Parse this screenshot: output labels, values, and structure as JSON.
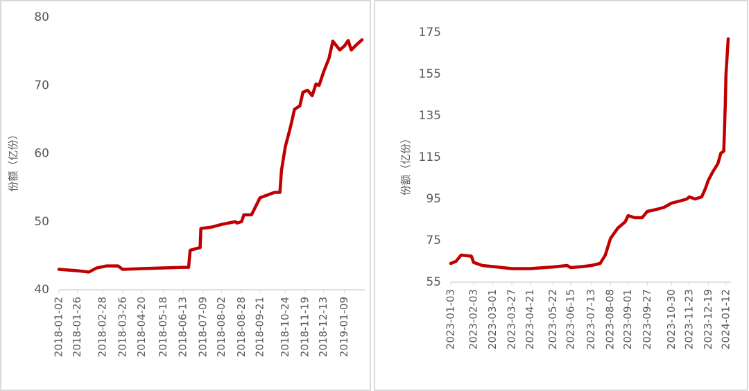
{
  "chart_data": [
    {
      "type": "line",
      "y_label": "份额（亿份）",
      "color": "#c00000",
      "x": [
        "2018-01-02",
        "2018-01-26",
        "2018-02-10",
        "2018-02-20",
        "2018-03-05",
        "2018-03-20",
        "2018-03-26",
        "2018-04-20",
        "2018-05-18",
        "2018-06-13",
        "2018-06-20",
        "2018-06-22",
        "2018-07-05",
        "2018-07-06",
        "2018-07-20",
        "2018-08-02",
        "2018-08-20",
        "2018-08-22",
        "2018-08-28",
        "2018-08-31",
        "2018-09-10",
        "2018-09-21",
        "2018-10-10",
        "2018-10-17",
        "2018-10-19",
        "2018-10-24",
        "2018-10-31",
        "2018-11-05",
        "2018-11-12",
        "2018-11-16",
        "2018-11-22",
        "2018-11-28",
        "2018-12-03",
        "2018-12-07",
        "2018-12-13",
        "2018-12-20",
        "2018-12-25",
        "2019-01-03",
        "2019-01-09",
        "2019-01-14",
        "2019-01-18",
        "2019-01-25",
        "2019-02-01"
      ],
      "values": [
        43,
        42.8,
        42.6,
        43.2,
        43.5,
        43.5,
        43,
        43.1,
        43.2,
        43.3,
        43.3,
        45.8,
        46.2,
        49,
        49.2,
        49.6,
        50,
        49.8,
        50,
        51,
        51,
        53.5,
        54.3,
        54.3,
        57.5,
        61,
        64,
        66.5,
        67,
        69,
        69.3,
        68.5,
        70.2,
        70,
        72,
        74,
        76.5,
        75.2,
        75.8,
        76.6,
        75.2,
        76,
        76.7
      ],
      "xlim": [
        "2018-01-02",
        "2019-02-01"
      ],
      "xticks": [
        "2018-01-02",
        "2018-01-26",
        "2018-02-28",
        "2018-03-26",
        "2018-04-20",
        "2018-05-18",
        "2018-06-13",
        "2018-07-09",
        "2018-08-02",
        "2018-08-28",
        "2018-09-21",
        "2018-10-24",
        "2018-11-19",
        "2018-12-13",
        "2019-01-09"
      ],
      "ylim": [
        40,
        80
      ],
      "yticks": [
        40,
        50,
        60,
        70,
        80
      ]
    },
    {
      "type": "line",
      "y_label": "份额（亿份）",
      "color": "#c00000",
      "x": [
        "2023-01-03",
        "2023-01-10",
        "2023-01-17",
        "2023-01-31",
        "2023-02-03",
        "2023-02-15",
        "2023-03-01",
        "2023-03-27",
        "2023-04-21",
        "2023-05-10",
        "2023-05-22",
        "2023-06-10",
        "2023-06-15",
        "2023-07-01",
        "2023-07-13",
        "2023-07-25",
        "2023-08-01",
        "2023-08-08",
        "2023-08-18",
        "2023-08-28",
        "2023-09-01",
        "2023-09-10",
        "2023-09-20",
        "2023-09-27",
        "2023-10-10",
        "2023-10-20",
        "2023-10-30",
        "2023-11-10",
        "2023-11-20",
        "2023-11-23",
        "2023-12-01",
        "2023-12-10",
        "2023-12-15",
        "2023-12-19",
        "2023-12-25",
        "2024-01-01",
        "2024-01-05",
        "2024-01-09",
        "2024-01-11",
        "2024-01-12",
        "2024-01-15"
      ],
      "values": [
        64,
        65,
        68,
        67.5,
        64.5,
        63,
        62.5,
        61.5,
        61.5,
        62,
        62.3,
        63,
        62,
        62.5,
        63,
        64,
        68,
        76,
        81,
        84,
        87,
        86,
        86,
        89,
        90,
        91,
        93,
        94,
        95,
        96,
        95,
        96,
        100,
        104,
        108,
        112,
        117,
        118,
        140,
        155,
        172
      ],
      "xlim": [
        "2023-01-03",
        "2024-01-15"
      ],
      "xticks": [
        "2023-01-03",
        "2023-02-03",
        "2023-03-01",
        "2023-03-27",
        "2023-04-21",
        "2023-05-22",
        "2023-06-15",
        "2023-07-13",
        "2023-08-08",
        "2023-09-01",
        "2023-09-27",
        "2023-10-30",
        "2023-11-23",
        "2023-12-19",
        "2024-01-12"
      ],
      "ylim": [
        55,
        175
      ],
      "yticks": [
        55,
        75,
        95,
        115,
        135,
        155,
        175
      ]
    }
  ]
}
